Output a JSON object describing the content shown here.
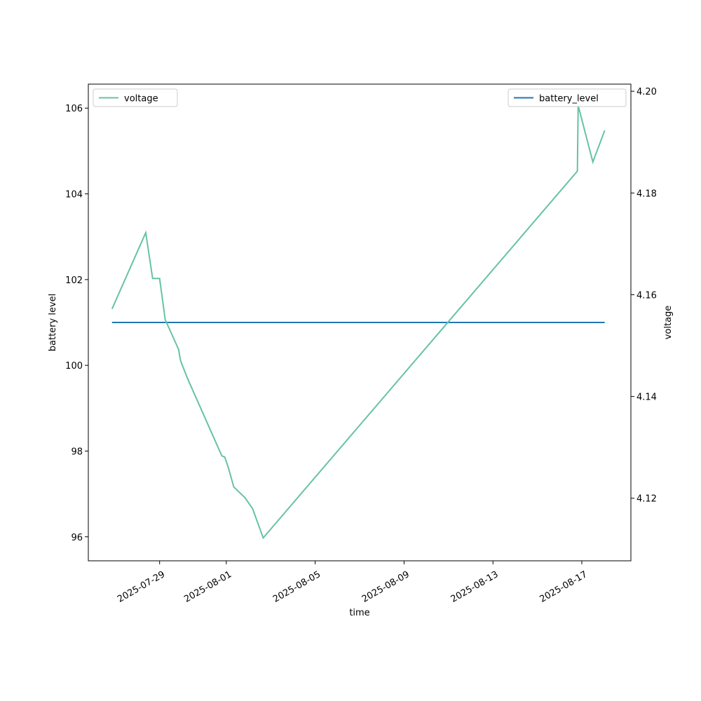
{
  "chart_data": {
    "type": "line",
    "xlabel": "time",
    "ylabel": "battery level",
    "y2label": "voltage",
    "x": [
      "2025-07-26 20:35",
      "2025-07-28 09:00",
      "2025-07-28 16:26",
      "2025-07-29 00:00",
      "2025-07-29 06:03",
      "2025-07-29 20:24",
      "2025-07-29 22:40",
      "2025-07-30 06:14",
      "2025-07-31 19:16",
      "2025-07-31 22:18",
      "2025-08-01 02:05",
      "2025-08-01 08:08",
      "2025-08-01 20:14",
      "2025-08-02 04:32",
      "2025-08-02 15:52",
      "2025-08-16 19:12",
      "2025-08-16 20:02",
      "2025-08-17 11:54",
      "2025-08-18 00:43"
    ],
    "series": [
      {
        "name": "battery_level",
        "color": "#1f77b4",
        "axis": "y",
        "legend": "upper right",
        "values": [
          101,
          101,
          101,
          101,
          101,
          101,
          101,
          101,
          101,
          101,
          101,
          101,
          101,
          101,
          101,
          101,
          101,
          101,
          101
        ]
      },
      {
        "name": "voltage",
        "color": "#66c2a5",
        "axis": "y2",
        "legend": "upper left",
        "values": [
          4.1572,
          4.1722,
          4.1632,
          4.1632,
          4.1551,
          4.1493,
          4.147,
          4.1435,
          4.1283,
          4.1281,
          4.1261,
          4.1222,
          4.1201,
          4.1179,
          4.1122,
          4.1843,
          4.1972,
          4.1861,
          4.1923
        ]
      }
    ],
    "xlim": [
      "2025-07-25 19:00",
      "2025-08-19 05:00"
    ],
    "xticks": [
      "2025-07-29",
      "2025-08-01",
      "2025-08-05",
      "2025-08-09",
      "2025-08-13",
      "2025-08-17"
    ],
    "ylim": [
      95.44,
      106.56
    ],
    "yticks": [
      96,
      98,
      100,
      102,
      104,
      106
    ],
    "y2lim": [
      4.1077,
      4.2014
    ],
    "y2ticks": [
      4.12,
      4.14,
      4.16,
      4.18,
      {
        "value": 4.2,
        "label": "4.20"
      }
    ],
    "grid": false
  }
}
